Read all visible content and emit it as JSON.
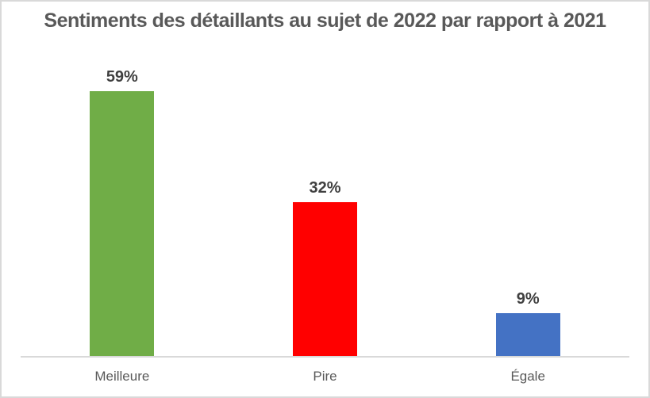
{
  "window": {
    "title": "Sentiments des détaillants au sujet de 2022 par rapport à 2021"
  },
  "chart_data": {
    "type": "bar",
    "title": "Sentiments des détaillants au sujet de 2022 par rapport à 2021",
    "categories": [
      "Meilleure",
      "Pire",
      "Égale"
    ],
    "values": [
      59,
      32,
      9
    ],
    "value_labels": [
      "59%",
      "32%",
      "9%"
    ],
    "unit": "%",
    "xlabel": "",
    "ylabel": "",
    "ylim": [
      0,
      60
    ],
    "grid": false,
    "legend_position": "none",
    "bar_colors": [
      "#70AD47",
      "#FF0000",
      "#4472C4"
    ],
    "title_color": "#595959",
    "data_label_color": "#404040",
    "category_label_color": "#595959",
    "axis_line_color": "#D9D9D9",
    "background_color": "#FFFFFF",
    "border_color": "#D9D9D9"
  }
}
